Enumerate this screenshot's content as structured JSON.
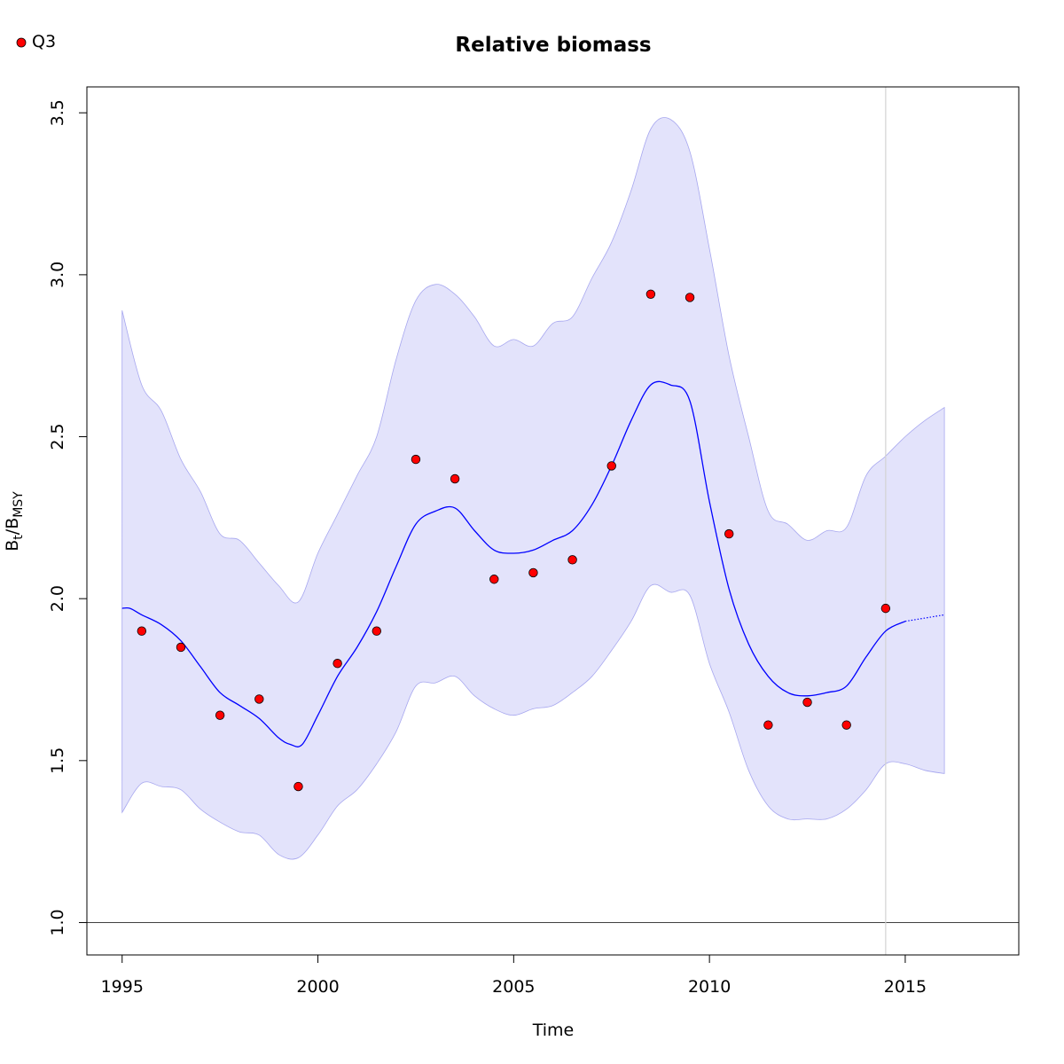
{
  "chart_data": {
    "type": "line",
    "title": "Relative biomass",
    "xlabel": "Time",
    "ylabel": {
      "main": "B",
      "sub1": "t",
      "slash": "/B",
      "sub2": "MSY"
    },
    "xlim": [
      1994.1,
      2017.9
    ],
    "ylim": [
      0.9,
      3.58
    ],
    "xticks": [
      1995,
      2000,
      2005,
      2010,
      2015
    ],
    "yticks": [
      1.0,
      1.5,
      2.0,
      2.5,
      3.0,
      3.5
    ],
    "ytick_labels": [
      "1.0",
      "1.5",
      "2.0",
      "2.5",
      "3.0",
      "3.5"
    ],
    "reference_line_y": 1.0,
    "vertical_line_x": 2014.5,
    "legend": {
      "position": "top-left",
      "entries": [
        {
          "name": "Q3",
          "marker": "circle",
          "color": "#ff0000"
        }
      ]
    },
    "colors": {
      "line": "#0000ff",
      "band_fill": "#e3e3fb",
      "band_edge": "#a7a7ef",
      "point": "#ff0000",
      "vline": "#d3d3d3"
    },
    "series": [
      {
        "name": "Q3",
        "kind": "points",
        "x": [
          1995.5,
          1996.5,
          1997.5,
          1998.5,
          1999.5,
          2000.5,
          2001.5,
          2002.5,
          2003.5,
          2004.5,
          2005.5,
          2006.5,
          2007.5,
          2008.5,
          2009.5,
          2010.5,
          2011.5,
          2012.5,
          2013.5,
          2014.5
        ],
        "y": [
          1.9,
          1.85,
          1.64,
          1.69,
          1.42,
          1.8,
          1.9,
          2.43,
          2.37,
          2.06,
          2.08,
          2.12,
          2.41,
          2.94,
          2.93,
          2.2,
          1.61,
          1.68,
          1.61,
          1.97
        ]
      },
      {
        "kind": "estimate",
        "x": [
          1995,
          1995.2,
          1995.5,
          1996.0,
          1996.5,
          1997.0,
          1997.5,
          1998.0,
          1998.5,
          1999.0,
          1999.3,
          1999.6,
          2000.0,
          2000.5,
          2001.0,
          2001.5,
          2002.0,
          2002.5,
          2003.0,
          2003.5,
          2004.0,
          2004.5,
          2005.0,
          2005.5,
          2006.0,
          2006.5,
          2007.0,
          2007.5,
          2008.0,
          2008.5,
          2009.0,
          2009.5,
          2010.0,
          2010.5,
          2011.0,
          2011.5,
          2012.0,
          2012.5,
          2013.0,
          2013.5,
          2014.0,
          2014.5,
          2015.0
        ],
        "y": [
          1.97,
          1.97,
          1.95,
          1.92,
          1.87,
          1.79,
          1.71,
          1.67,
          1.63,
          1.57,
          1.55,
          1.55,
          1.64,
          1.76,
          1.85,
          1.96,
          2.1,
          2.23,
          2.27,
          2.28,
          2.21,
          2.15,
          2.14,
          2.15,
          2.18,
          2.21,
          2.29,
          2.41,
          2.55,
          2.66,
          2.66,
          2.61,
          2.3,
          2.03,
          1.86,
          1.76,
          1.71,
          1.7,
          1.71,
          1.73,
          1.82,
          1.9,
          1.93
        ]
      },
      {
        "kind": "forecast",
        "x": [
          2015.0,
          2016.0
        ],
        "y": [
          1.93,
          1.95
        ]
      }
    ],
    "confidence_band": {
      "x": [
        1995,
        1995.5,
        1996.0,
        1996.5,
        1997.0,
        1997.5,
        1998.0,
        1998.5,
        1999.0,
        1999.5,
        2000.0,
        2000.5,
        2001.0,
        2001.5,
        2002.0,
        2002.5,
        2003.0,
        2003.5,
        2004.0,
        2004.5,
        2005.0,
        2005.5,
        2006.0,
        2006.5,
        2007.0,
        2007.5,
        2008.0,
        2008.5,
        2009.0,
        2009.5,
        2010.0,
        2010.5,
        2011.0,
        2011.5,
        2012.0,
        2012.5,
        2013.0,
        2013.5,
        2014.0,
        2014.5,
        2015.0,
        2015.5,
        2016.0
      ],
      "upper": [
        2.89,
        2.66,
        2.58,
        2.43,
        2.33,
        2.2,
        2.18,
        2.11,
        2.04,
        1.99,
        2.14,
        2.26,
        2.38,
        2.5,
        2.74,
        2.92,
        2.97,
        2.94,
        2.87,
        2.78,
        2.8,
        2.78,
        2.85,
        2.87,
        2.99,
        3.1,
        3.26,
        3.45,
        3.48,
        3.38,
        3.08,
        2.75,
        2.5,
        2.27,
        2.23,
        2.18,
        2.21,
        2.22,
        2.38,
        2.44,
        2.5,
        2.55,
        2.59
      ],
      "lower": [
        1.34,
        1.43,
        1.42,
        1.41,
        1.35,
        1.31,
        1.28,
        1.27,
        1.21,
        1.2,
        1.27,
        1.36,
        1.41,
        1.49,
        1.59,
        1.73,
        1.74,
        1.76,
        1.7,
        1.66,
        1.64,
        1.66,
        1.67,
        1.71,
        1.76,
        1.84,
        1.93,
        2.04,
        2.02,
        2.01,
        1.8,
        1.65,
        1.47,
        1.36,
        1.32,
        1.32,
        1.32,
        1.35,
        1.41,
        1.49,
        1.49,
        1.47,
        1.46
      ]
    }
  }
}
